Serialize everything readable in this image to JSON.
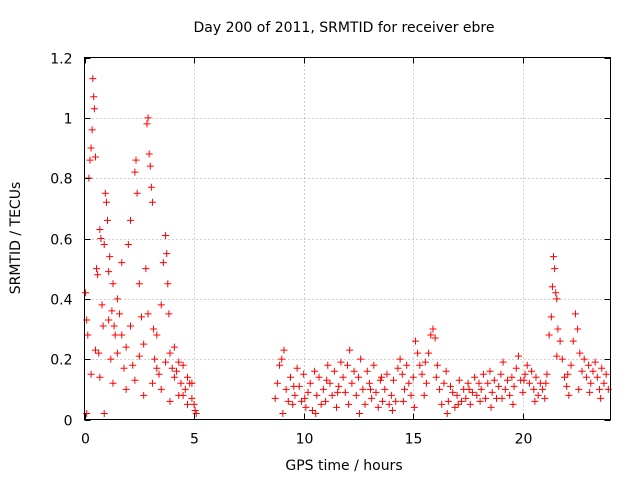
{
  "chart_data": {
    "type": "scatter",
    "title": "Day 200 of 2011, SRMTID for receiver ebre",
    "xlabel": "GPS time / hours",
    "ylabel": "SRMTID / TECUs",
    "xlim": [
      0,
      24
    ],
    "ylim": [
      0,
      1.2
    ],
    "xticks": [
      0,
      5,
      10,
      15,
      20
    ],
    "xtick_labels": [
      "0",
      "5",
      "10",
      "15",
      "20"
    ],
    "yticks": [
      0,
      0.2,
      0.4,
      0.6,
      0.8,
      1.0,
      1.2
    ],
    "ytick_labels": [
      "0",
      "0.2",
      "0.4",
      "0.6",
      "0.8",
      "1",
      "1.2"
    ],
    "grid": true,
    "marker": "+",
    "color": "#ff0000",
    "series": [
      {
        "name": "SRMTID",
        "points": [
          [
            0.05,
            0.42
          ],
          [
            0.1,
            0.33
          ],
          [
            0.15,
            0.28
          ],
          [
            0.2,
            0.8
          ],
          [
            0.25,
            0.86
          ],
          [
            0.3,
            0.9
          ],
          [
            0.35,
            0.96
          ],
          [
            0.38,
            1.13
          ],
          [
            0.42,
            1.07
          ],
          [
            0.45,
            1.03
          ],
          [
            0.5,
            0.87
          ],
          [
            0.55,
            0.5
          ],
          [
            0.6,
            0.48
          ],
          [
            0.65,
            0.22
          ],
          [
            0.7,
            0.63
          ],
          [
            0.75,
            0.6
          ],
          [
            0.8,
            0.38
          ],
          [
            0.85,
            0.31
          ],
          [
            0.9,
            0.58
          ],
          [
            0.95,
            0.75
          ],
          [
            1.0,
            0.72
          ],
          [
            1.05,
            0.66
          ],
          [
            1.1,
            0.49
          ],
          [
            1.15,
            0.54
          ],
          [
            1.2,
            0.2
          ],
          [
            1.25,
            0.36
          ],
          [
            1.3,
            0.45
          ],
          [
            1.35,
            0.31
          ],
          [
            1.4,
            0.28
          ],
          [
            1.5,
            0.22
          ],
          [
            1.6,
            0.35
          ],
          [
            1.7,
            0.52
          ],
          [
            1.8,
            0.17
          ],
          [
            1.9,
            0.24
          ],
          [
            2.0,
            0.58
          ],
          [
            2.1,
            0.66
          ],
          [
            2.2,
            0.18
          ],
          [
            2.3,
            0.82
          ],
          [
            2.35,
            0.86
          ],
          [
            2.4,
            0.75
          ],
          [
            2.5,
            0.45
          ],
          [
            2.6,
            0.34
          ],
          [
            2.7,
            0.25
          ],
          [
            2.8,
            0.5
          ],
          [
            2.85,
            0.98
          ],
          [
            2.9,
            1.0
          ],
          [
            2.95,
            0.88
          ],
          [
            3.0,
            0.84
          ],
          [
            3.05,
            0.77
          ],
          [
            3.1,
            0.72
          ],
          [
            3.15,
            0.3
          ],
          [
            3.2,
            0.2
          ],
          [
            3.3,
            0.17
          ],
          [
            3.4,
            0.15
          ],
          [
            3.5,
            0.38
          ],
          [
            3.6,
            0.52
          ],
          [
            3.7,
            0.61
          ],
          [
            3.75,
            0.55
          ],
          [
            3.8,
            0.45
          ],
          [
            3.85,
            0.35
          ],
          [
            3.9,
            0.22
          ],
          [
            4.0,
            0.17
          ],
          [
            4.1,
            0.14
          ],
          [
            4.2,
            0.16
          ],
          [
            4.3,
            0.19
          ],
          [
            4.4,
            0.12
          ],
          [
            4.5,
            0.08
          ],
          [
            4.6,
            0.1
          ],
          [
            4.7,
            0.14
          ],
          [
            4.8,
            0.12
          ],
          [
            4.9,
            0.07
          ],
          [
            5.0,
            0.05
          ],
          [
            5.05,
            0.03
          ],
          [
            5.1,
            0.02
          ],
          [
            0.1,
            0.02
          ],
          [
            0.3,
            0.15
          ],
          [
            0.5,
            0.23
          ],
          [
            0.7,
            0.14
          ],
          [
            0.9,
            0.02
          ],
          [
            1.1,
            0.33
          ],
          [
            1.3,
            0.12
          ],
          [
            1.5,
            0.4
          ],
          [
            1.7,
            0.28
          ],
          [
            1.9,
            0.1
          ],
          [
            2.1,
            0.31
          ],
          [
            2.3,
            0.13
          ],
          [
            2.5,
            0.21
          ],
          [
            2.7,
            0.08
          ],
          [
            2.9,
            0.35
          ],
          [
            3.1,
            0.12
          ],
          [
            3.3,
            0.28
          ],
          [
            3.5,
            0.1
          ],
          [
            3.7,
            0.19
          ],
          [
            3.9,
            0.06
          ],
          [
            4.1,
            0.24
          ],
          [
            4.3,
            0.08
          ],
          [
            4.5,
            0.18
          ],
          [
            4.7,
            0.05
          ],
          [
            4.9,
            0.12
          ],
          [
            8.7,
            0.07
          ],
          [
            8.8,
            0.12
          ],
          [
            8.9,
            0.18
          ],
          [
            9.0,
            0.2
          ],
          [
            9.1,
            0.23
          ],
          [
            9.2,
            0.1
          ],
          [
            9.3,
            0.06
          ],
          [
            9.4,
            0.14
          ],
          [
            9.5,
            0.05
          ],
          [
            9.6,
            0.08
          ],
          [
            9.7,
            0.17
          ],
          [
            9.8,
            0.11
          ],
          [
            9.9,
            0.06
          ],
          [
            10.0,
            0.15
          ],
          [
            10.1,
            0.04
          ],
          [
            10.2,
            0.09
          ],
          [
            10.3,
            0.12
          ],
          [
            10.4,
            0.03
          ],
          [
            10.5,
            0.16
          ],
          [
            10.6,
            0.08
          ],
          [
            10.7,
            0.14
          ],
          [
            10.8,
            0.05
          ],
          [
            10.9,
            0.1
          ],
          [
            11.0,
            0.06
          ],
          [
            11.1,
            0.18
          ],
          [
            11.2,
            0.12
          ],
          [
            11.3,
            0.08
          ],
          [
            11.4,
            0.16
          ],
          [
            11.5,
            0.04
          ],
          [
            11.6,
            0.11
          ],
          [
            11.7,
            0.19
          ],
          [
            11.8,
            0.14
          ],
          [
            11.9,
            0.09
          ],
          [
            12.0,
            0.18
          ],
          [
            12.1,
            0.23
          ],
          [
            12.2,
            0.12
          ],
          [
            12.3,
            0.16
          ],
          [
            12.4,
            0.08
          ],
          [
            12.5,
            0.14
          ],
          [
            12.6,
            0.2
          ],
          [
            12.7,
            0.1
          ],
          [
            12.8,
            0.05
          ],
          [
            12.9,
            0.16
          ],
          [
            13.0,
            0.12
          ],
          [
            13.1,
            0.07
          ],
          [
            13.2,
            0.18
          ],
          [
            13.3,
            0.09
          ],
          [
            13.4,
            0.04
          ],
          [
            13.5,
            0.13
          ],
          [
            13.6,
            0.06
          ],
          [
            13.7,
            0.1
          ],
          [
            13.8,
            0.15
          ],
          [
            13.9,
            0.05
          ],
          [
            14.0,
            0.08
          ],
          [
            14.1,
            0.13
          ],
          [
            14.2,
            0.06
          ],
          [
            14.3,
            0.17
          ],
          [
            14.4,
            0.2
          ],
          [
            14.5,
            0.15
          ],
          [
            14.6,
            0.1
          ],
          [
            14.7,
            0.18
          ],
          [
            14.8,
            0.12
          ],
          [
            14.9,
            0.08
          ],
          [
            15.0,
            0.14
          ],
          [
            15.1,
            0.26
          ],
          [
            15.2,
            0.22
          ],
          [
            15.3,
            0.18
          ],
          [
            15.4,
            0.15
          ],
          [
            15.5,
            0.08
          ],
          [
            15.6,
            0.12
          ],
          [
            15.7,
            0.22
          ],
          [
            15.8,
            0.28
          ],
          [
            15.9,
            0.3
          ],
          [
            16.0,
            0.27
          ],
          [
            16.1,
            0.18
          ],
          [
            16.2,
            0.1
          ],
          [
            16.3,
            0.05
          ],
          [
            16.4,
            0.12
          ],
          [
            16.5,
            0.16
          ],
          [
            16.6,
            0.06
          ],
          [
            16.7,
            0.11
          ],
          [
            16.8,
            0.09
          ],
          [
            16.9,
            0.04
          ],
          [
            17.0,
            0.08
          ],
          [
            17.1,
            0.13
          ],
          [
            17.2,
            0.06
          ],
          [
            17.3,
            0.1
          ],
          [
            17.4,
            0.07
          ],
          [
            17.5,
            0.12
          ],
          [
            17.6,
            0.05
          ],
          [
            17.7,
            0.09
          ],
          [
            17.8,
            0.14
          ],
          [
            17.9,
            0.08
          ],
          [
            18.0,
            0.12
          ],
          [
            18.1,
            0.1
          ],
          [
            18.2,
            0.15
          ],
          [
            18.3,
            0.07
          ],
          [
            18.4,
            0.12
          ],
          [
            18.5,
            0.16
          ],
          [
            18.6,
            0.09
          ],
          [
            18.7,
            0.13
          ],
          [
            18.8,
            0.07
          ],
          [
            18.9,
            0.11
          ],
          [
            19.0,
            0.15
          ],
          [
            19.1,
            0.19
          ],
          [
            19.2,
            0.1
          ],
          [
            19.3,
            0.13
          ],
          [
            19.4,
            0.08
          ],
          [
            19.5,
            0.14
          ],
          [
            19.6,
            0.11
          ],
          [
            19.7,
            0.17
          ],
          [
            19.8,
            0.21
          ],
          [
            19.9,
            0.13
          ],
          [
            20.0,
            0.09
          ],
          [
            20.1,
            0.15
          ],
          [
            20.2,
            0.18
          ],
          [
            20.3,
            0.12
          ],
          [
            20.4,
            0.16
          ],
          [
            20.5,
            0.1
          ],
          [
            20.6,
            0.14
          ],
          [
            20.7,
            0.08
          ],
          [
            20.8,
            0.12
          ],
          [
            20.9,
            0.1
          ],
          [
            21.0,
            0.07
          ],
          [
            21.1,
            0.15
          ],
          [
            21.2,
            0.28
          ],
          [
            21.3,
            0.34
          ],
          [
            21.35,
            0.44
          ],
          [
            21.4,
            0.54
          ],
          [
            21.45,
            0.5
          ],
          [
            21.5,
            0.42
          ],
          [
            21.55,
            0.4
          ],
          [
            21.6,
            0.3
          ],
          [
            21.7,
            0.26
          ],
          [
            21.8,
            0.2
          ],
          [
            21.9,
            0.14
          ],
          [
            22.0,
            0.11
          ],
          [
            22.1,
            0.08
          ],
          [
            22.2,
            0.18
          ],
          [
            22.3,
            0.26
          ],
          [
            22.4,
            0.35
          ],
          [
            22.5,
            0.3
          ],
          [
            22.6,
            0.22
          ],
          [
            22.7,
            0.16
          ],
          [
            22.8,
            0.2
          ],
          [
            22.9,
            0.14
          ],
          [
            23.0,
            0.18
          ],
          [
            23.1,
            0.12
          ],
          [
            23.2,
            0.16
          ],
          [
            23.3,
            0.19
          ],
          [
            23.4,
            0.14
          ],
          [
            23.5,
            0.1
          ],
          [
            23.6,
            0.17
          ],
          [
            23.7,
            0.12
          ],
          [
            23.8,
            0.15
          ],
          [
            23.9,
            0.1
          ],
          [
            9.05,
            0.02
          ],
          [
            9.55,
            0.11
          ],
          [
            10.05,
            0.07
          ],
          [
            10.55,
            0.02
          ],
          [
            11.05,
            0.13
          ],
          [
            11.55,
            0.09
          ],
          [
            12.05,
            0.05
          ],
          [
            12.55,
            0.02
          ],
          [
            13.05,
            0.1
          ],
          [
            13.55,
            0.14
          ],
          [
            14.05,
            0.03
          ],
          [
            14.55,
            0.06
          ],
          [
            15.05,
            0.04
          ],
          [
            15.55,
            0.19
          ],
          [
            16.05,
            0.14
          ],
          [
            16.55,
            0.02
          ],
          [
            17.05,
            0.05
          ],
          [
            17.55,
            0.1
          ],
          [
            18.05,
            0.06
          ],
          [
            18.55,
            0.04
          ],
          [
            19.05,
            0.07
          ],
          [
            19.55,
            0.05
          ],
          [
            20.05,
            0.13
          ],
          [
            20.55,
            0.06
          ],
          [
            21.05,
            0.12
          ],
          [
            21.55,
            0.21
          ],
          [
            22.05,
            0.15
          ],
          [
            22.55,
            0.1
          ],
          [
            23.05,
            0.09
          ],
          [
            23.55,
            0.07
          ]
        ]
      }
    ]
  }
}
